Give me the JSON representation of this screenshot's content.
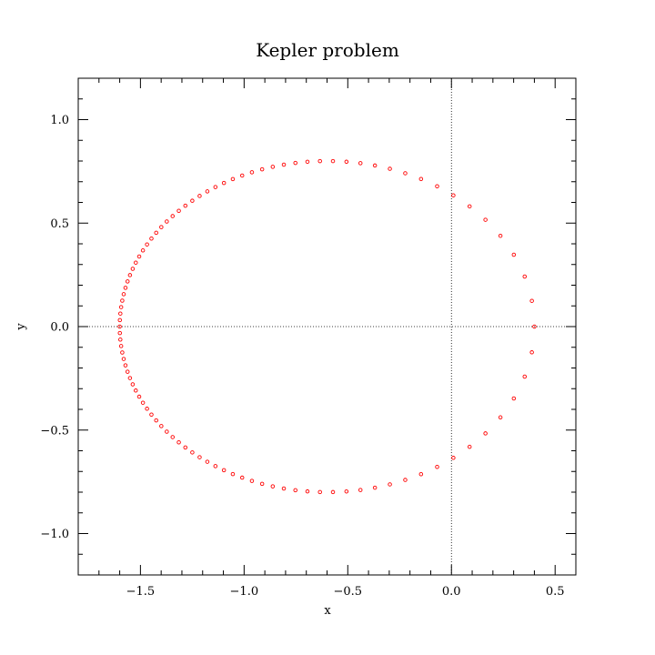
{
  "chart_data": {
    "type": "scatter",
    "title": "Kepler problem",
    "xlabel": "x",
    "ylabel": "y",
    "xlim": [
      -1.8,
      0.6
    ],
    "ylim": [
      -1.2,
      1.2
    ],
    "xticks": [
      -1.5,
      -1.0,
      -0.5,
      0.0,
      0.5
    ],
    "xtick_labels": [
      "−1.5",
      "−1.0",
      "−0.5",
      "0.0",
      "0.5"
    ],
    "yticks": [
      -1.0,
      -0.5,
      0.0,
      0.5,
      1.0
    ],
    "ytick_labels": [
      "−1.0",
      "−0.5",
      "0.0",
      "0.5",
      "1.0"
    ],
    "minor_tick_step": 0.1,
    "zero_lines": true,
    "grid": false,
    "marker": "open-circle",
    "marker_color": "#ff0000",
    "orbit": {
      "shape": "ellipse",
      "center": [
        -0.6,
        0.0
      ],
      "semi_axis_x": 1.0,
      "semi_axis_y": 0.8,
      "focus": [
        0.0,
        0.0
      ],
      "n_points": 100
    }
  }
}
